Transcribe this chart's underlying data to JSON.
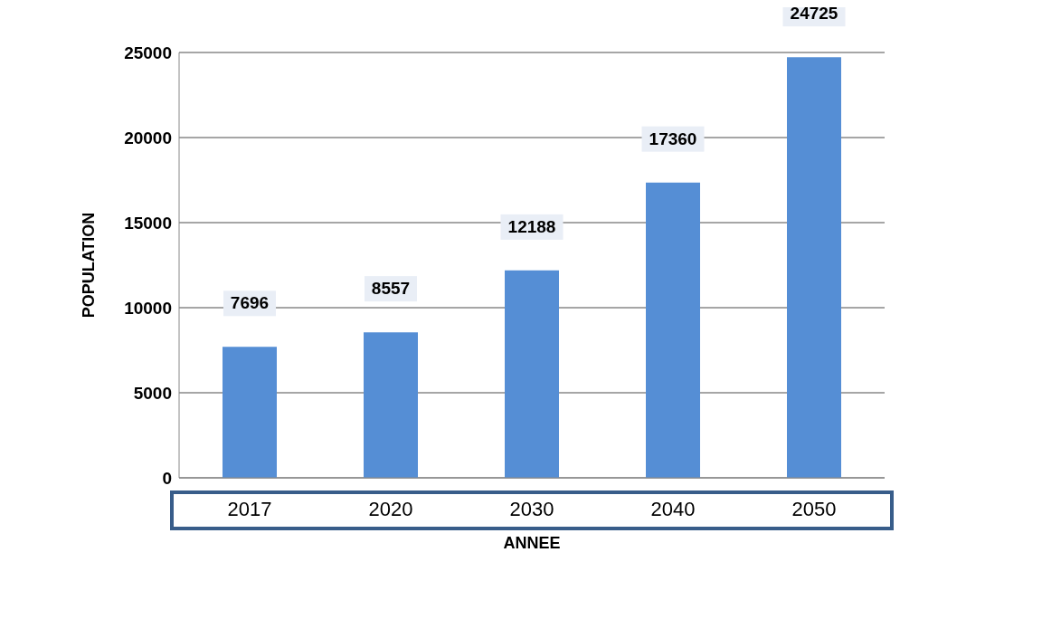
{
  "chart_data": {
    "type": "bar",
    "xlabel": "ANNEE",
    "ylabel": "POPULATION",
    "categories": [
      "2017",
      "2020",
      "2030",
      "2040",
      "2050"
    ],
    "values": [
      7696,
      8557,
      12188,
      17360,
      24725
    ],
    "color": "#558ed5",
    "ylim": [
      0,
      25000
    ],
    "yticks": [
      0,
      5000,
      10000,
      15000,
      20000,
      25000
    ],
    "grid": "y",
    "data_labels": true
  }
}
